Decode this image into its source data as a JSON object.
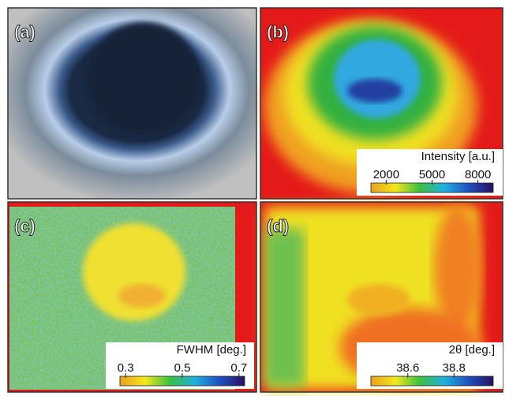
{
  "panels": [
    {
      "label": "(a)"
    },
    {
      "label": "(b)",
      "colorbar": {
        "title": "Intensity [a.u.]",
        "lim": [
          1000,
          9000
        ],
        "ticks": [
          2000,
          5000,
          8000
        ],
        "colors": [
          "#e8a020",
          "#f4e81a",
          "#3cc040",
          "#20b0e0",
          "#2050c0",
          "#2a1060"
        ]
      }
    },
    {
      "label": "(c)",
      "colorbar": {
        "title": "FWHM [deg.]",
        "lim": [
          0.28,
          0.72
        ],
        "ticks": [
          0.3,
          0.5,
          0.7
        ],
        "colors": [
          "#e8a020",
          "#f4e81a",
          "#3cc040",
          "#20b0e0",
          "#2050c0",
          "#2a1060"
        ]
      }
    },
    {
      "label": "(d)",
      "colorbar": {
        "title": "2θ [deg.]",
        "lim": [
          38.44,
          38.97
        ],
        "ticks": [
          38.6,
          38.8
        ],
        "colors": [
          "#e8a020",
          "#f4e81a",
          "#3cc040",
          "#20b0e0",
          "#2050c0",
          "#2a1060"
        ]
      }
    }
  ]
}
